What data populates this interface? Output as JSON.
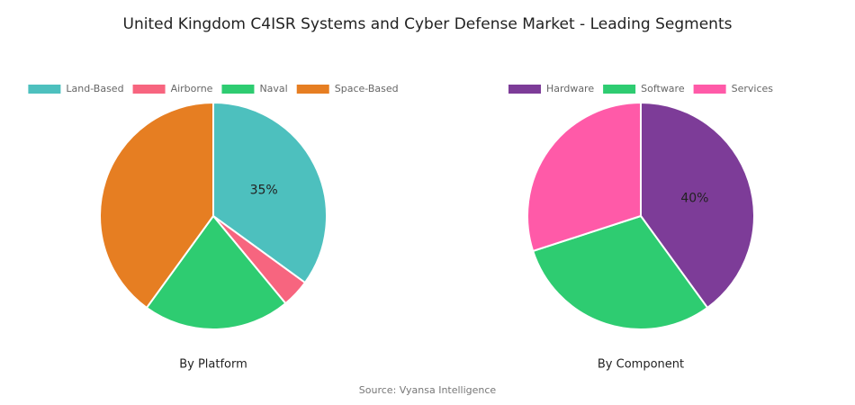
{
  "title": "United Kingdom C4ISR Systems and Cyber Defense Market - Leading Segments",
  "source": "Source: Vyansa Intelligence",
  "chart_data": [
    {
      "type": "pie",
      "title": "By Platform",
      "categories": [
        "Land-Based",
        "Airborne",
        "Naval",
        "Space-Based"
      ],
      "values": [
        35,
        4,
        21,
        40
      ],
      "value_labels": [
        "35%",
        null,
        null,
        null
      ],
      "colors": [
        "#4dc0be",
        "#f7657f",
        "#2ecc71",
        "#e67e22"
      ]
    },
    {
      "type": "pie",
      "title": "By Component",
      "categories": [
        "Hardware",
        "Software",
        "Services"
      ],
      "values": [
        40,
        30,
        30
      ],
      "value_labels": [
        "40%",
        null,
        null
      ],
      "colors": [
        "#7d3c98",
        "#2ecc71",
        "#ff5aa8"
      ]
    }
  ]
}
